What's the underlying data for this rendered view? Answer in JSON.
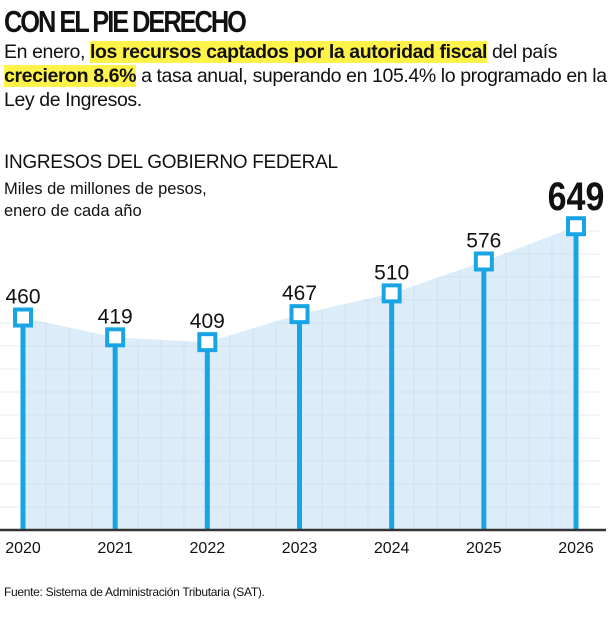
{
  "headline": "CON EL PIE DERECHO",
  "lede": {
    "part1": "En enero, ",
    "highlight1": "los recursos captados por la autoridad fiscal",
    "part2": " del país ",
    "highlight2": "crecieron 8.6%",
    "part3": " a tasa anual, superando en 105.4% lo programado en la Ley de Ingresos."
  },
  "source": "Fuente: Sistema de Administración Tributaria (SAT).",
  "colors": {
    "accent": "#19a5e3",
    "fill": "#dcedf9",
    "highlight": "#fff34a"
  },
  "chart_data": {
    "type": "area",
    "title": "INGRESOS DEL GOBIERNO FEDERAL",
    "subtitle": "Miles de millones de pesos, enero de cada año",
    "subtitle_lines": [
      "Miles de millones de pesos,",
      "enero de cada año"
    ],
    "categories": [
      "2020",
      "2021",
      "2022",
      "2023",
      "2024",
      "2025",
      "2026"
    ],
    "values": [
      460,
      419,
      409,
      467,
      510,
      576,
      649
    ],
    "labels": [
      "460",
      "419",
      "409",
      "467",
      "510",
      "576",
      "649"
    ],
    "highlight_last": true,
    "grid": true
  }
}
